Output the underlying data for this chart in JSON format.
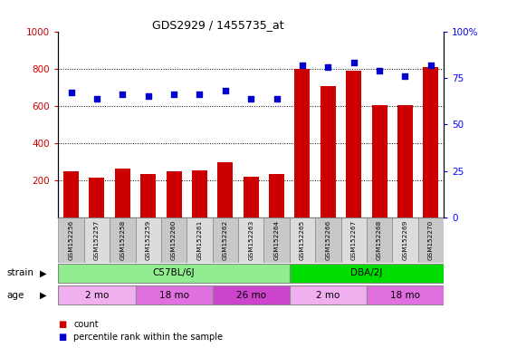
{
  "title": "GDS2929 / 1455735_at",
  "samples": [
    "GSM152256",
    "GSM152257",
    "GSM152258",
    "GSM152259",
    "GSM152260",
    "GSM152261",
    "GSM152262",
    "GSM152263",
    "GSM152264",
    "GSM152265",
    "GSM152266",
    "GSM152267",
    "GSM152268",
    "GSM152269",
    "GSM152270"
  ],
  "counts": [
    250,
    215,
    265,
    235,
    250,
    255,
    295,
    220,
    235,
    800,
    705,
    790,
    605,
    605,
    810
  ],
  "percentile": [
    67,
    64,
    66,
    65,
    66,
    66,
    68,
    64,
    64,
    82,
    81,
    83,
    79,
    76,
    82
  ],
  "strain_groups": [
    {
      "label": "C57BL/6J",
      "start": 0,
      "end": 9,
      "color": "#90EE90"
    },
    {
      "label": "DBA/2J",
      "start": 9,
      "end": 15,
      "color": "#00DD00"
    }
  ],
  "age_groups": [
    {
      "label": "2 mo",
      "start": 0,
      "end": 3,
      "color": "#F0B0F0"
    },
    {
      "label": "18 mo",
      "start": 3,
      "end": 6,
      "color": "#E070E0"
    },
    {
      "label": "26 mo",
      "start": 6,
      "end": 9,
      "color": "#CC44CC"
    },
    {
      "label": "2 mo",
      "start": 9,
      "end": 12,
      "color": "#F0B0F0"
    },
    {
      "label": "18 mo",
      "start": 12,
      "end": 15,
      "color": "#E070E0"
    }
  ],
  "bar_color": "#CC0000",
  "dot_color": "#0000CC",
  "ylim_left": [
    0,
    1000
  ],
  "ylim_right": [
    0,
    100
  ],
  "yticks_left": [
    200,
    400,
    600,
    800,
    1000
  ],
  "yticks_right": [
    0,
    25,
    50,
    75,
    100
  ],
  "grid_values": [
    200,
    400,
    600,
    800
  ],
  "cell_color_even": "#C8C8C8",
  "cell_color_odd": "#DCDCDC"
}
